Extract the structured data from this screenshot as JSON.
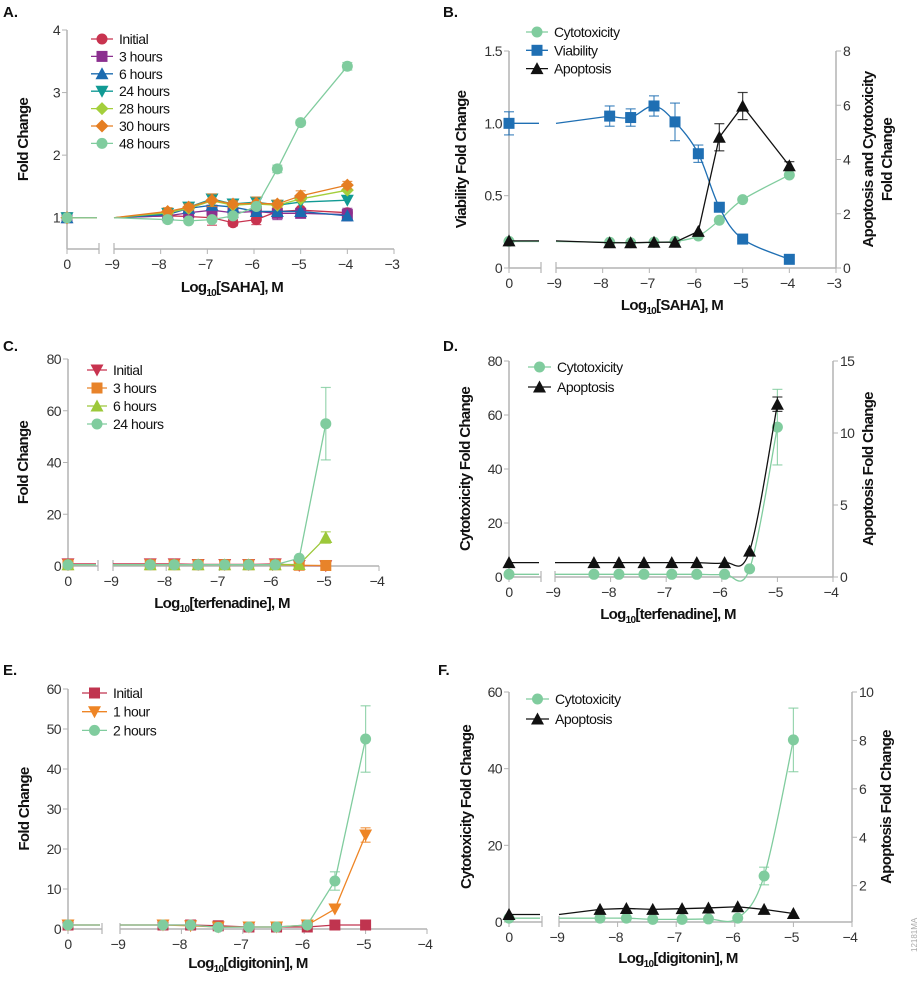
{
  "watermark": "12181MA",
  "chart_data": [
    {
      "panel_label": "A.",
      "type": "line",
      "xlabel": [
        "Log",
        "10",
        "[SAHA], M"
      ],
      "ylabel": "Fold Change",
      "x_control_tick": "0",
      "xticks": [
        "−9",
        "−8",
        "−7",
        "−6",
        "−5",
        "−4",
        "−3"
      ],
      "xlim": [
        -9,
        -3
      ],
      "ylim": [
        0.5,
        4
      ],
      "yticks": [
        "1",
        "2",
        "3",
        "4"
      ],
      "legend_placement": "top-left",
      "series": [
        {
          "name": "Initial",
          "color": "#c8334f",
          "marker": "circle",
          "control": 1.0,
          "x": [
            -7.85,
            -7.4,
            -6.9,
            -6.45,
            -5.95,
            -5.5,
            -5,
            -4
          ],
          "y": [
            1.03,
            1.02,
            1.0,
            0.92,
            0.97,
            1.1,
            1.12,
            1.08
          ],
          "err": [
            null,
            null,
            0.12,
            0.05,
            0.08,
            null,
            null,
            null
          ]
        },
        {
          "name": "3 hours",
          "color": "#8b2f8f",
          "marker": "square",
          "control": 1.0,
          "x": [
            -7.85,
            -7.4,
            -6.9,
            -6.45,
            -5.95,
            -5.5,
            -5,
            -4
          ],
          "y": [
            1.03,
            1.08,
            1.12,
            1.08,
            1.1,
            1.07,
            1.07,
            1.05
          ],
          "err": [
            null,
            null,
            null,
            null,
            null,
            0.1,
            null,
            0.1
          ]
        },
        {
          "name": "6 hours",
          "color": "#1b6bb0",
          "marker": "triangle",
          "control": 1.0,
          "x": [
            -7.85,
            -7.4,
            -6.9,
            -6.45,
            -5.95,
            -5.5,
            -5,
            -4
          ],
          "y": [
            1.05,
            1.15,
            1.2,
            1.17,
            1.1,
            1.1,
            1.1,
            1.03
          ],
          "err": [
            null,
            null,
            null,
            null,
            null,
            null,
            null,
            null
          ]
        },
        {
          "name": "24 hours",
          "color": "#119a94",
          "marker": "triangle-down",
          "control": 1.0,
          "x": [
            -7.85,
            -7.4,
            -6.9,
            -6.45,
            -5.95,
            -5.5,
            -5,
            -4
          ],
          "y": [
            1.07,
            1.17,
            1.3,
            1.22,
            1.25,
            1.2,
            1.25,
            1.28
          ],
          "err": [
            null,
            null,
            null,
            null,
            null,
            null,
            null,
            null
          ]
        },
        {
          "name": "28 hours",
          "color": "#a4cf3c",
          "marker": "diamond",
          "control": 1.0,
          "x": [
            -7.85,
            -7.4,
            -6.9,
            -6.45,
            -5.95,
            -5.5,
            -5,
            -4
          ],
          "y": [
            1.08,
            1.15,
            1.27,
            1.2,
            1.22,
            1.2,
            1.3,
            1.44
          ],
          "err": [
            null,
            null,
            null,
            null,
            null,
            null,
            null,
            null
          ]
        },
        {
          "name": "30 hours",
          "color": "#e57e22",
          "marker": "diamond",
          "control": 1.0,
          "x": [
            -7.85,
            -7.4,
            -6.9,
            -6.45,
            -5.95,
            -5.5,
            -5,
            -4
          ],
          "y": [
            1.1,
            1.17,
            1.28,
            1.22,
            1.23,
            1.22,
            1.35,
            1.52
          ],
          "err": [
            0.06,
            0.05,
            0.1,
            0.05,
            0.1,
            0.06,
            0.08,
            0.06
          ]
        },
        {
          "name": "48 hours",
          "color": "#80cc9e",
          "marker": "circle",
          "control": 1.0,
          "x": [
            -7.85,
            -7.4,
            -6.9,
            -6.45,
            -5.95,
            -5.5,
            -5,
            -4
          ],
          "y": [
            0.97,
            0.95,
            0.97,
            1.03,
            1.18,
            1.78,
            2.52,
            3.42
          ],
          "err": [
            0.05,
            null,
            null,
            null,
            null,
            0.06,
            0.04,
            0.06
          ]
        }
      ]
    },
    {
      "panel_label": "B.",
      "type": "line",
      "xlabel": [
        "Log",
        "10",
        "[SAHA], M"
      ],
      "ylabel": "Viability Fold Change",
      "ylabel_right": [
        "Apoptosis and Cytotoxicity",
        "Fold Change"
      ],
      "x_control_tick": "0",
      "xticks": [
        "−9",
        "−8",
        "−7",
        "−6",
        "−5",
        "−4",
        "−3"
      ],
      "xlim": [
        -9,
        -3
      ],
      "ylim": [
        0,
        1.5
      ],
      "yticks": [
        "0",
        "0.5",
        "1.0",
        "1.5"
      ],
      "ylim_right": [
        0,
        8
      ],
      "yticks_right": [
        "0",
        "2",
        "4",
        "6",
        "8"
      ],
      "legend_placement": "top-left",
      "series": [
        {
          "name": "Cytotoxicity",
          "color": "#80cc9e",
          "marker": "circle",
          "axis": "right",
          "fit": true,
          "control": 0.98,
          "x": [
            -7.85,
            -7.4,
            -6.9,
            -6.45,
            -5.95,
            -5.5,
            -5,
            -4
          ],
          "y": [
            0.95,
            0.93,
            0.95,
            0.98,
            1.18,
            1.76,
            2.52,
            3.43
          ],
          "err": [
            null,
            null,
            null,
            null,
            null,
            null,
            null,
            null
          ]
        },
        {
          "name": "Viability",
          "color": "#1f6fb3",
          "marker": "square",
          "axis": "left",
          "fit": true,
          "control": 1.0,
          "x": [
            -7.85,
            -7.4,
            -6.9,
            -6.45,
            -5.95,
            -5.5,
            -5,
            -4
          ],
          "y": [
            1.05,
            1.04,
            1.12,
            1.01,
            0.79,
            0.42,
            0.2,
            0.06
          ],
          "err": [
            0.07,
            0.06,
            0.07,
            0.13,
            0.06,
            null,
            null,
            null
          ],
          "err_control": 0.08
        },
        {
          "name": "Apoptosis",
          "color": "#111111",
          "marker": "triangle",
          "axis": "right",
          "fit": false,
          "control": 1.0,
          "x": [
            -7.85,
            -7.4,
            -6.9,
            -6.45,
            -5.95,
            -5.5,
            -5,
            -4
          ],
          "y": [
            0.93,
            0.93,
            0.95,
            0.95,
            1.35,
            4.82,
            5.97,
            3.77
          ],
          "err": [
            null,
            null,
            null,
            null,
            null,
            0.5,
            0.5,
            0.15
          ]
        }
      ]
    },
    {
      "panel_label": "C.",
      "type": "line",
      "xlabel": [
        "Log",
        "10",
        "[terfenadine], M"
      ],
      "ylabel": "Fold Change",
      "x_control_tick": "0",
      "xticks": [
        "−9",
        "−8",
        "−7",
        "−6",
        "−5",
        "−4"
      ],
      "xlim": [
        -9,
        -4
      ],
      "ylim": [
        0,
        80
      ],
      "yticks": [
        "0",
        "20",
        "40",
        "60",
        "80"
      ],
      "legend_placement": "top-left",
      "series": [
        {
          "name": "Initial",
          "color": "#c8334f",
          "marker": "triangle-down",
          "control": 0.8,
          "x": [
            -8.3,
            -7.85,
            -7.4,
            -6.9,
            -6.45,
            -5.95,
            -5.5,
            -5
          ],
          "y": [
            0.8,
            0.8,
            0.6,
            0.6,
            0.6,
            0.8,
            0.2,
            0.1
          ],
          "err": [
            null,
            null,
            null,
            null,
            null,
            null,
            null,
            null
          ]
        },
        {
          "name": "3 hours",
          "color": "#e8832a",
          "marker": "square",
          "control": 0.5,
          "x": [
            -8.3,
            -7.85,
            -7.4,
            -6.9,
            -6.45,
            -5.95,
            -5.5,
            -5
          ],
          "y": [
            0.5,
            0.5,
            0.5,
            0.5,
            0.5,
            0.5,
            0.3,
            0.2
          ],
          "err": [
            null,
            null,
            null,
            null,
            null,
            null,
            null,
            null
          ]
        },
        {
          "name": "6 hours",
          "color": "#9cc83a",
          "marker": "triangle",
          "control": 0.5,
          "x": [
            -8.3,
            -7.85,
            -7.4,
            -6.9,
            -6.45,
            -5.95,
            -5.5,
            -5
          ],
          "y": [
            0.5,
            0.5,
            0.5,
            0.5,
            0.5,
            0.5,
            0.6,
            11
          ],
          "err": [
            null,
            null,
            null,
            null,
            null,
            null,
            null,
            2.2
          ]
        },
        {
          "name": "24 hours",
          "color": "#80cc9e",
          "marker": "circle",
          "control": 0.5,
          "x": [
            -8.3,
            -7.85,
            -7.4,
            -6.9,
            -6.45,
            -5.95,
            -5.5,
            -5
          ],
          "y": [
            0.5,
            0.5,
            0.5,
            0.5,
            0.5,
            0.5,
            3,
            55
          ],
          "err": [
            null,
            null,
            null,
            null,
            null,
            null,
            null,
            14
          ]
        }
      ]
    },
    {
      "panel_label": "D.",
      "type": "line",
      "xlabel": [
        "Log",
        "10",
        "[terfenadine], M"
      ],
      "ylabel": "Cytotoxicity Fold Change",
      "ylabel_right": [
        "Apoptosis Fold Change"
      ],
      "x_control_tick": "0",
      "xticks": [
        "−9",
        "−8",
        "−7",
        "−6",
        "−5",
        "−4"
      ],
      "xlim": [
        -9,
        -4
      ],
      "ylim": [
        0,
        80
      ],
      "yticks": [
        "0",
        "20",
        "40",
        "60",
        "80"
      ],
      "ylim_right": [
        0,
        15
      ],
      "yticks_right": [
        "0",
        "5",
        "10",
        "15"
      ],
      "legend_placement": "top-left",
      "series": [
        {
          "name": "Cytotoxicity",
          "color": "#80cc9e",
          "marker": "circle",
          "axis": "left",
          "fit": true,
          "control": 1,
          "x": [
            -8.3,
            -7.85,
            -7.4,
            -6.9,
            -6.45,
            -5.95,
            -5.5,
            -5
          ],
          "y": [
            1,
            1,
            1,
            1,
            1,
            1,
            3,
            55.5
          ],
          "err": [
            null,
            null,
            null,
            null,
            null,
            null,
            null,
            14
          ]
        },
        {
          "name": "Apoptosis",
          "color": "#111111",
          "marker": "triangle",
          "axis": "right",
          "fit": true,
          "control": 1,
          "x": [
            -8.3,
            -7.85,
            -7.4,
            -6.9,
            -6.45,
            -5.95,
            -5.5,
            -5
          ],
          "y": [
            1,
            1,
            1,
            1,
            1,
            1,
            1.8,
            12
          ],
          "err": [
            null,
            null,
            null,
            null,
            null,
            null,
            null,
            0.5
          ]
        }
      ]
    },
    {
      "panel_label": "E.",
      "type": "line",
      "xlabel": [
        "Log",
        "10",
        "[digitonin], M"
      ],
      "ylabel": "Fold Change",
      "x_control_tick": "0",
      "xticks": [
        "−9",
        "−8",
        "−7",
        "−6",
        "−5",
        "−4"
      ],
      "xlim": [
        -9,
        -4
      ],
      "ylim": [
        0,
        60
      ],
      "yticks": [
        "0",
        "10",
        "20",
        "30",
        "40",
        "50",
        "60"
      ],
      "legend_placement": "top-left",
      "series": [
        {
          "name": "Initial",
          "color": "#c0344f",
          "marker": "square",
          "control": 1,
          "x": [
            -8.3,
            -7.85,
            -7.4,
            -6.9,
            -6.45,
            -5.95,
            -5.5,
            -5
          ],
          "y": [
            1,
            1,
            0.8,
            0.5,
            0.5,
            0.5,
            1,
            1
          ],
          "err": [
            null,
            null,
            null,
            null,
            null,
            null,
            null,
            null
          ]
        },
        {
          "name": "1 hour",
          "color": "#ee8525",
          "marker": "triangle-down",
          "control": 1,
          "x": [
            -8.3,
            -7.85,
            -7.4,
            -6.9,
            -6.45,
            -5.95,
            -5.5,
            -5
          ],
          "y": [
            1,
            0.8,
            0.5,
            0.5,
            0.5,
            1,
            5,
            23.5
          ],
          "err": [
            null,
            null,
            null,
            null,
            null,
            null,
            null,
            1.8
          ]
        },
        {
          "name": "2 hours",
          "color": "#80cc9e",
          "marker": "circle",
          "control": 1,
          "x": [
            -8.3,
            -7.85,
            -7.4,
            -6.9,
            -6.45,
            -5.95,
            -5.5,
            -5
          ],
          "y": [
            1,
            1,
            0.4,
            0.5,
            0.5,
            1,
            12,
            47.5
          ],
          "err": [
            null,
            null,
            null,
            null,
            null,
            null,
            2.3,
            8.3
          ]
        }
      ]
    },
    {
      "panel_label": "F.",
      "type": "line",
      "xlabel": [
        "Log",
        "10",
        "[digitonin], M"
      ],
      "ylabel": "Cytotoxicity Fold Change",
      "ylabel_right": [
        "Apoptosis Fold Change"
      ],
      "x_control_tick": "0",
      "xticks": [
        "−9",
        "−8",
        "−7",
        "−6",
        "−5",
        "−4"
      ],
      "xlim": [
        -9,
        -4
      ],
      "ylim": [
        0,
        60
      ],
      "yticks": [
        "0",
        "20",
        "40",
        "60"
      ],
      "ylim_right": [
        0.5,
        10
      ],
      "yticks_right": [
        "2",
        "4",
        "6",
        "8",
        "10"
      ],
      "legend_placement": "top-left",
      "series": [
        {
          "name": "Cytotoxicity",
          "color": "#80cc9e",
          "marker": "circle",
          "axis": "left",
          "fit": true,
          "control": 1,
          "x": [
            -8.3,
            -7.85,
            -7.4,
            -6.9,
            -6.45,
            -5.95,
            -5.5,
            -5
          ],
          "y": [
            1,
            1,
            0.7,
            0.7,
            0.8,
            1,
            12,
            47.5
          ],
          "err": [
            null,
            null,
            null,
            null,
            null,
            null,
            2.3,
            8.3
          ]
        },
        {
          "name": "Apoptosis",
          "color": "#111111",
          "marker": "triangle",
          "axis": "right",
          "fit": false,
          "control": 0.81,
          "x": [
            -8.3,
            -7.85,
            -7.4,
            -6.9,
            -6.45,
            -5.95,
            -5.5,
            -5
          ],
          "y": [
            1.02,
            1.06,
            1.02,
            1.05,
            1.08,
            1.13,
            1.02,
            0.85
          ],
          "err": [
            null,
            null,
            null,
            null,
            null,
            null,
            null,
            null
          ]
        }
      ]
    }
  ]
}
